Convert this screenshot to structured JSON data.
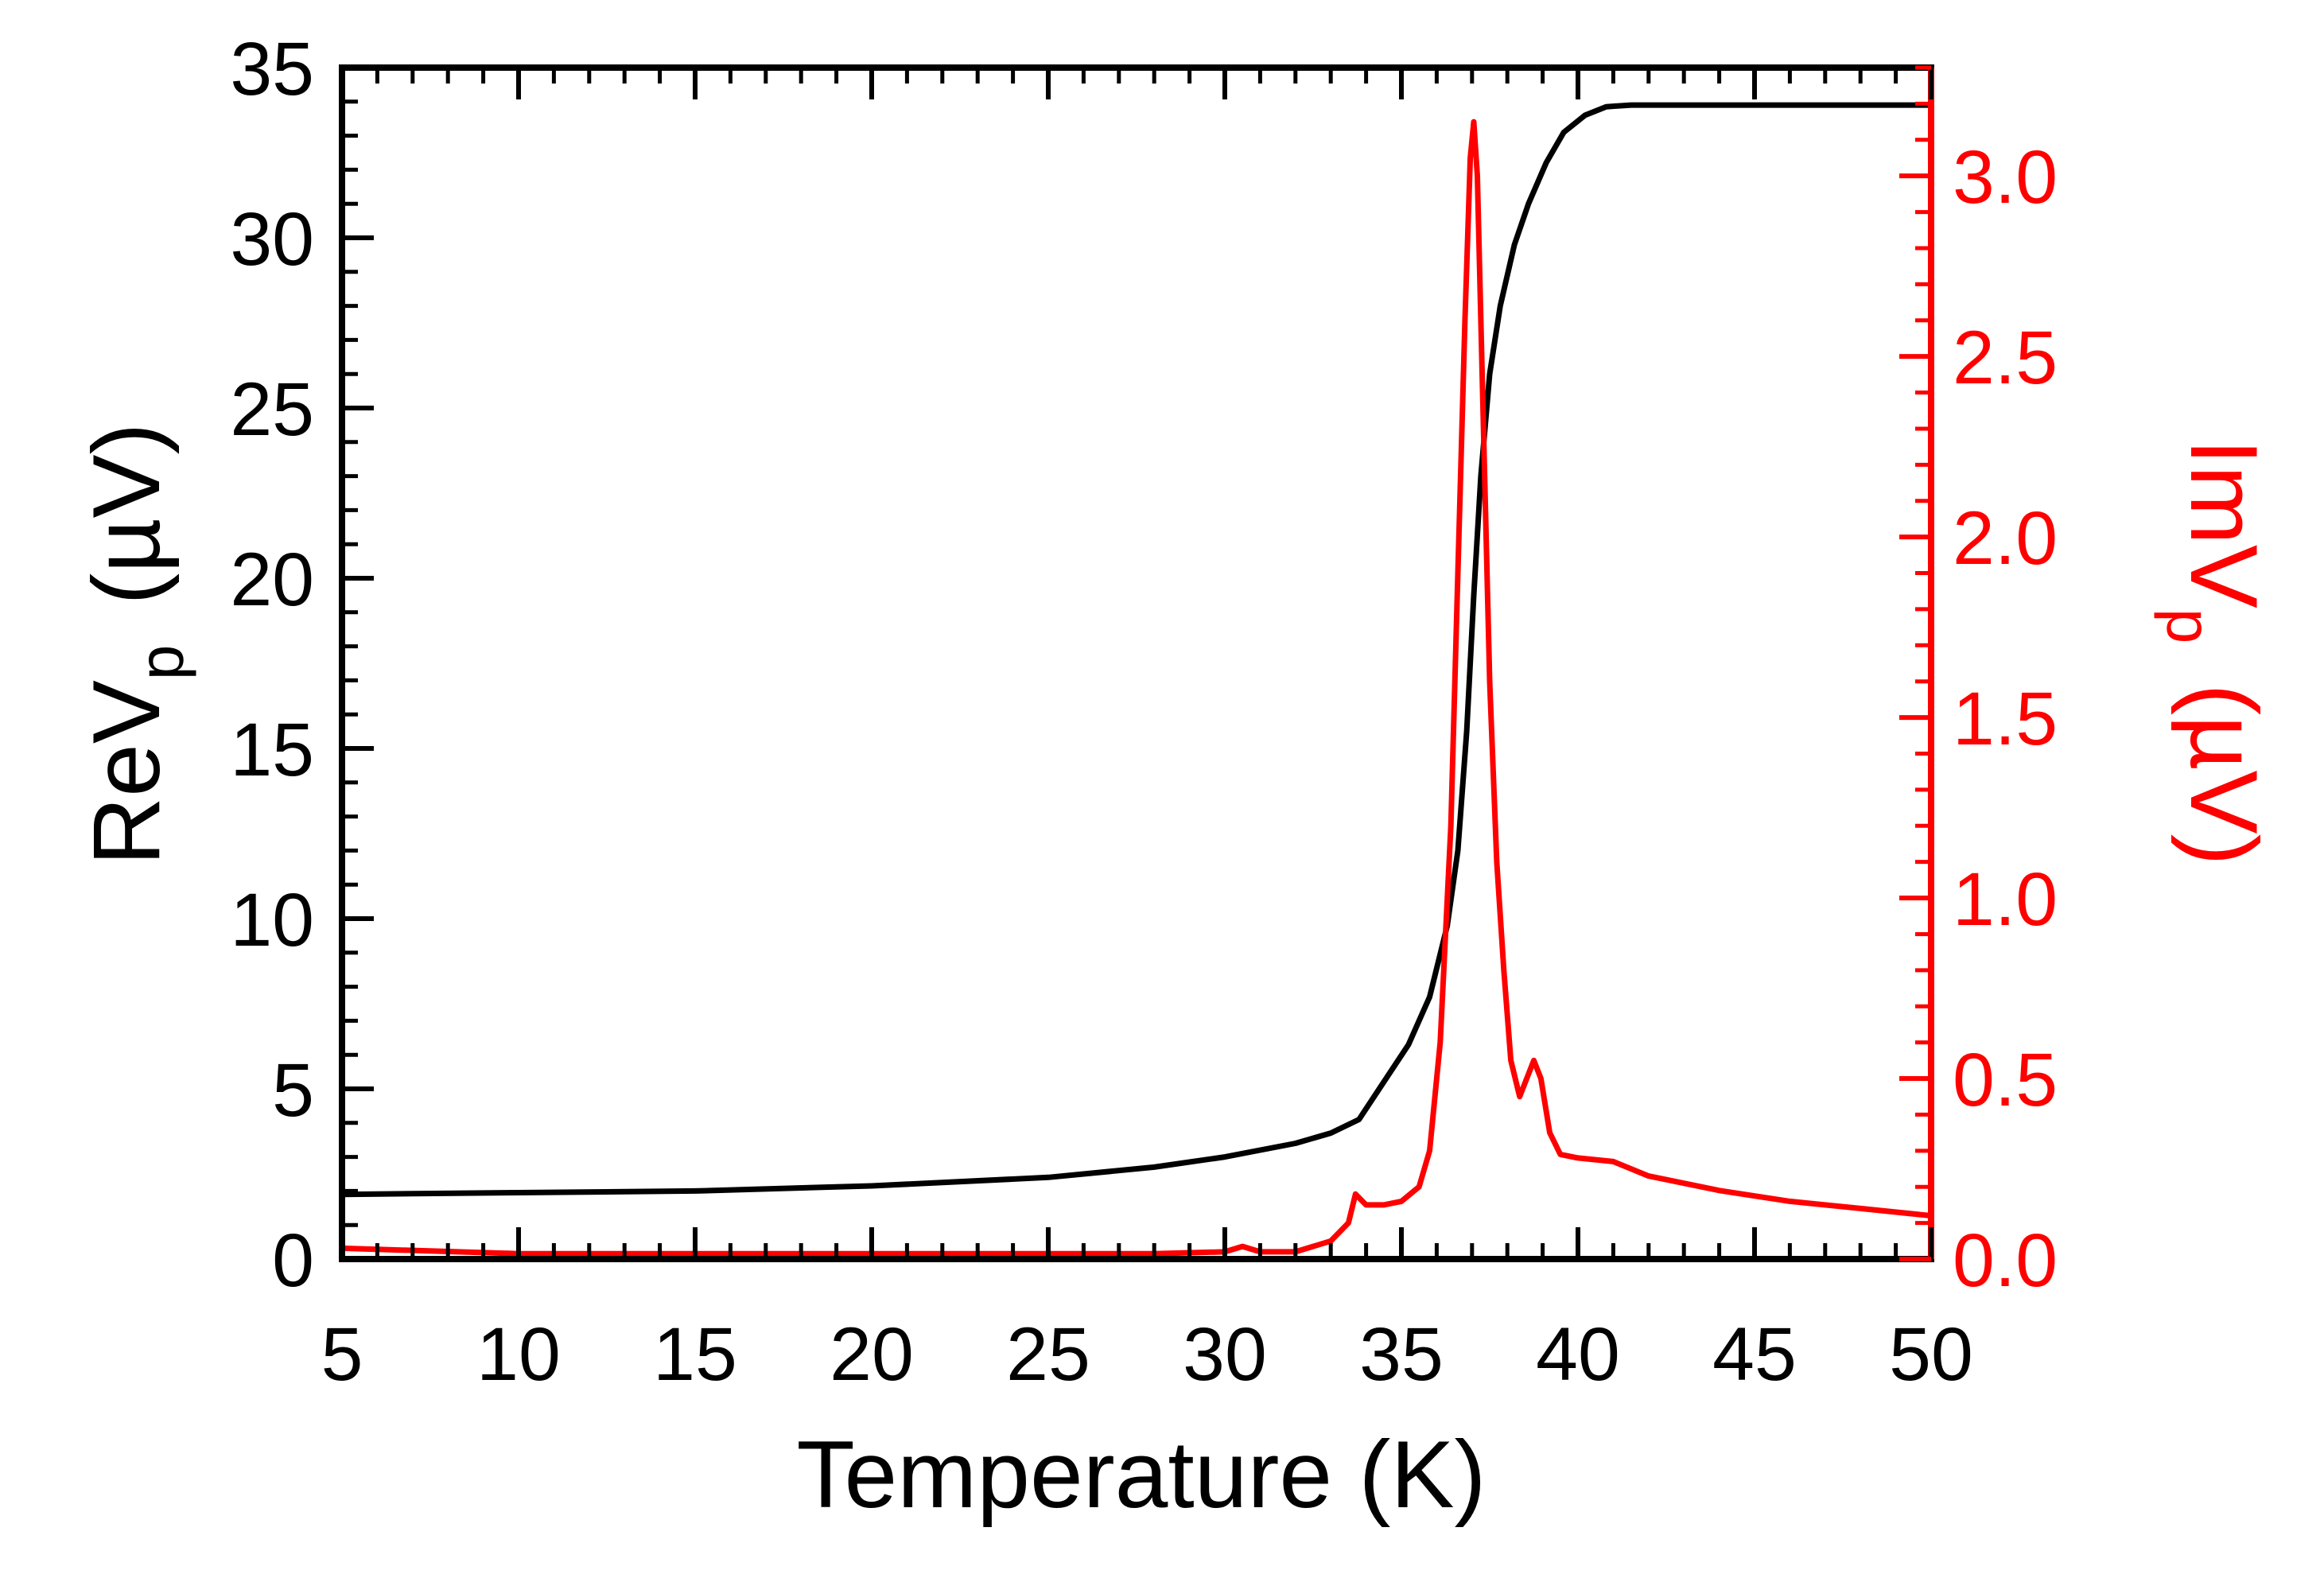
{
  "chart_data": {
    "type": "line",
    "title": "",
    "xlabel": "Temperature (K)",
    "ylabel_left": {
      "main": "ReV",
      "sub": "p",
      "unit": "(µV)"
    },
    "ylabel_right": {
      "main": "ImV",
      "sub": "p",
      "unit": "(µV)"
    },
    "xlim": [
      5,
      50
    ],
    "ylim_left": [
      0,
      35
    ],
    "ylim_right": [
      0,
      3.3
    ],
    "xticks": [
      5,
      10,
      15,
      20,
      25,
      30,
      35,
      40,
      45,
      50
    ],
    "yticks_left": [
      0,
      5,
      10,
      15,
      20,
      25,
      30,
      35
    ],
    "yticks_right": [
      0.0,
      0.5,
      1.0,
      1.5,
      2.0,
      2.5,
      3.0
    ],
    "xtick_labels": [
      "5",
      "10",
      "15",
      "20",
      "25",
      "30",
      "35",
      "40",
      "45",
      "50"
    ],
    "ytick_labels_left": [
      "0",
      "5",
      "10",
      "15",
      "20",
      "25",
      "30",
      "35"
    ],
    "ytick_labels_right": [
      "0.0",
      "0.5",
      "1.0",
      "1.5",
      "2.0",
      "2.5",
      "3.0"
    ],
    "grid": false,
    "series": [
      {
        "name": "ReV_p",
        "axis": "left",
        "color": "#000000",
        "points": [
          [
            5,
            1.9
          ],
          [
            10,
            1.95
          ],
          [
            15,
            2.0
          ],
          [
            20,
            2.15
          ],
          [
            25,
            2.4
          ],
          [
            28,
            2.7
          ],
          [
            30,
            3.0
          ],
          [
            32,
            3.4
          ],
          [
            33,
            3.7
          ],
          [
            33.8,
            4.1
          ],
          [
            34.5,
            5.2
          ],
          [
            35.2,
            6.3
          ],
          [
            35.8,
            7.7
          ],
          [
            36.3,
            9.8
          ],
          [
            36.6,
            12.0
          ],
          [
            36.85,
            15.5
          ],
          [
            37.05,
            19.5
          ],
          [
            37.25,
            23.0
          ],
          [
            37.5,
            26.0
          ],
          [
            37.8,
            28.0
          ],
          [
            38.2,
            29.8
          ],
          [
            38.6,
            31.0
          ],
          [
            39.1,
            32.2
          ],
          [
            39.6,
            33.1
          ],
          [
            40.2,
            33.6
          ],
          [
            40.8,
            33.85
          ],
          [
            41.5,
            33.9
          ],
          [
            45,
            33.9
          ],
          [
            50,
            33.9
          ]
        ]
      },
      {
        "name": "ImV_p",
        "axis": "right",
        "color": "#ff0000",
        "points": [
          [
            5,
            0.03
          ],
          [
            10,
            0.015
          ],
          [
            15,
            0.015
          ],
          [
            20,
            0.015
          ],
          [
            25,
            0.015
          ],
          [
            28,
            0.015
          ],
          [
            30,
            0.02
          ],
          [
            30.5,
            0.035
          ],
          [
            31,
            0.02
          ],
          [
            32,
            0.02
          ],
          [
            33,
            0.05
          ],
          [
            33.5,
            0.1
          ],
          [
            33.7,
            0.18
          ],
          [
            34,
            0.15
          ],
          [
            34.5,
            0.15
          ],
          [
            35,
            0.16
          ],
          [
            35.5,
            0.2
          ],
          [
            35.8,
            0.3
          ],
          [
            36.1,
            0.6
          ],
          [
            36.4,
            1.2
          ],
          [
            36.6,
            1.9
          ],
          [
            36.8,
            2.6
          ],
          [
            36.95,
            3.05
          ],
          [
            37.05,
            3.15
          ],
          [
            37.15,
            3.0
          ],
          [
            37.3,
            2.4
          ],
          [
            37.5,
            1.6
          ],
          [
            37.7,
            1.1
          ],
          [
            37.9,
            0.8
          ],
          [
            38.1,
            0.55
          ],
          [
            38.35,
            0.45
          ],
          [
            38.55,
            0.5
          ],
          [
            38.75,
            0.55
          ],
          [
            38.95,
            0.5
          ],
          [
            39.2,
            0.35
          ],
          [
            39.5,
            0.29
          ],
          [
            40,
            0.28
          ],
          [
            41,
            0.27
          ],
          [
            42,
            0.23
          ],
          [
            44,
            0.19
          ],
          [
            46,
            0.16
          ],
          [
            48,
            0.14
          ],
          [
            50,
            0.12
          ]
        ]
      }
    ]
  }
}
